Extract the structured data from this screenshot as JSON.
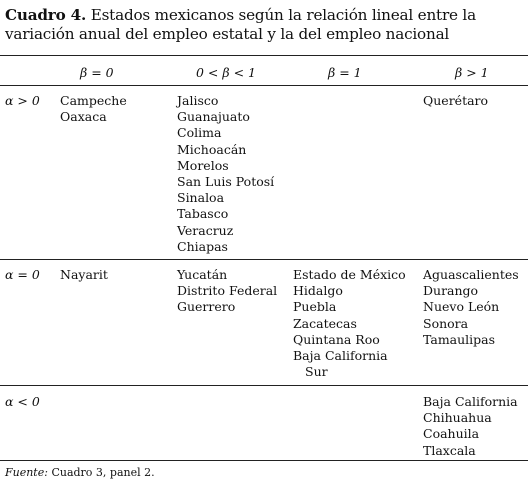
{
  "table": {
    "title_bold": "Cuadro 4.",
    "title_rest": " Estados mexicanos según la relación lineal entre la variación anual del empleo estatal y la del empleo nacional",
    "col_headers": [
      "β = 0",
      "0 < β < 1",
      "β = 1",
      "β > 1"
    ],
    "rows": [
      {
        "label": "α > 0",
        "cells": [
          [
            "Campeche",
            "Oaxaca"
          ],
          [
            "Jalisco",
            "Guanajuato",
            "Colima",
            "Michoacán",
            "Morelos",
            "San Luis Potosí",
            "Sinaloa",
            "Tabasco",
            "Veracruz",
            "Chiapas"
          ],
          [],
          [
            "Querétaro"
          ]
        ]
      },
      {
        "label": "α = 0",
        "cells": [
          [
            "Nayarit"
          ],
          [
            "Yucatán",
            "Distrito Federal",
            "Guerrero"
          ],
          [
            "Estado de México",
            "Hidalgo",
            "Puebla",
            "Zacatecas",
            "Quintana Roo",
            "Baja California",
            "Sur"
          ],
          [
            "Aguascalientes",
            "Durango",
            "Nuevo León",
            "Sonora",
            "Tamaulipas"
          ]
        ]
      },
      {
        "label": "α < 0",
        "cells": [
          [],
          [],
          [],
          [
            "Baja California",
            "Chihuahua",
            "Coahuila",
            "Tlaxcala"
          ]
        ]
      }
    ],
    "source_label": "Fuente:",
    "source_text": " Cuadro 3, panel 2."
  }
}
